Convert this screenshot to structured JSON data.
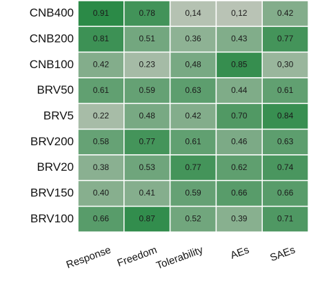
{
  "chart_data": {
    "type": "heatmap",
    "rows": [
      "CNB400",
      "CNB200",
      "CNB100",
      "BRV50",
      "BRV5",
      "BRV200",
      "BRV20",
      "BRV150",
      "BRV100"
    ],
    "columns": [
      "Response",
      "Freedom",
      "Tolerability",
      "AEs",
      "SAEs"
    ],
    "values": [
      [
        0.91,
        0.78,
        0.14,
        0.12,
        0.42
      ],
      [
        0.81,
        0.51,
        0.36,
        0.43,
        0.77
      ],
      [
        0.42,
        0.23,
        0.48,
        0.85,
        0.3
      ],
      [
        0.61,
        0.59,
        0.63,
        0.44,
        0.61
      ],
      [
        0.22,
        0.48,
        0.42,
        0.7,
        0.84
      ],
      [
        0.58,
        0.77,
        0.61,
        0.46,
        0.63
      ],
      [
        0.38,
        0.53,
        0.77,
        0.62,
        0.74
      ],
      [
        0.4,
        0.41,
        0.59,
        0.66,
        0.66
      ],
      [
        0.66,
        0.87,
        0.52,
        0.39,
        0.71
      ]
    ],
    "value_labels": [
      [
        "0.91",
        "0.78",
        "0,14",
        "0,12",
        "0.42"
      ],
      [
        "0.81",
        "0.51",
        "0.36",
        "0.43",
        "0.77"
      ],
      [
        "0.42",
        "0.23",
        "0,48",
        "0.85",
        "0,30"
      ],
      [
        "0.61",
        "0.59",
        "0.63",
        "0.44",
        "0.61"
      ],
      [
        "0.22",
        "0.48",
        "0.42",
        "0.70",
        "0.84"
      ],
      [
        "0.58",
        "0.77",
        "0.61",
        "0.46",
        "0.63"
      ],
      [
        "0.38",
        "0.53",
        "0.77",
        "0.62",
        "0.74"
      ],
      [
        "0.40",
        "0.41",
        "0.59",
        "0.66",
        "0.66"
      ],
      [
        "0.66",
        "0.87",
        "0.52",
        "0.39",
        "0.71"
      ]
    ],
    "colormap": [
      "#b9c3b5",
      "#2b8a47"
    ]
  }
}
